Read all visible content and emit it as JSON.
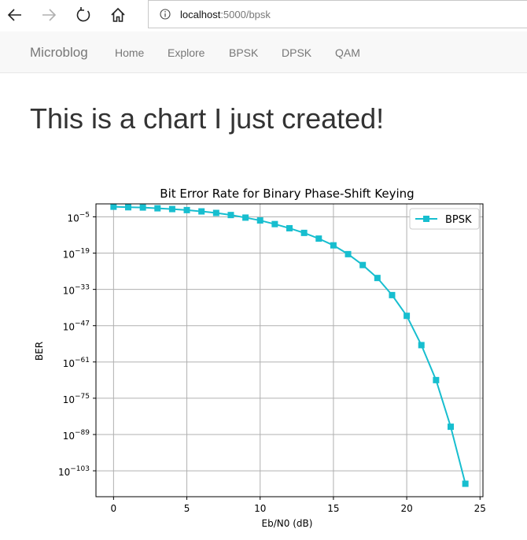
{
  "browser": {
    "url_host": "localhost",
    "url_path": ":5000/bpsk",
    "icons": [
      "back-icon",
      "forward-icon",
      "refresh-icon",
      "home-icon",
      "info-icon"
    ]
  },
  "navbar": {
    "brand": "Microblog",
    "links": [
      "Home",
      "Explore",
      "BPSK",
      "DPSK",
      "QAM"
    ]
  },
  "page": {
    "title": "This is a chart I just created!"
  },
  "colors": {
    "series": "#17becf",
    "grid": "#b0b0b0",
    "navbar_bg": "#f8f8f8"
  },
  "chart_data": {
    "type": "line",
    "title": "Bit Error Rate for Binary Phase-Shift Keying",
    "xlabel": "Eb/N0 (dB)",
    "ylabel": "BER",
    "yscale": "log",
    "grid": true,
    "legend_loc": "upper right",
    "xlim": [
      -1.2,
      25.2
    ],
    "ylim_exponent": [
      -113,
      0
    ],
    "xticks": [
      0,
      5,
      10,
      15,
      20,
      25
    ],
    "xtick_labels": [
      "0",
      "5",
      "10",
      "15",
      "20",
      "25"
    ],
    "yticks_exponent": [
      -5,
      -19,
      -33,
      -47,
      -61,
      -75,
      -89,
      -103
    ],
    "ytick_labels": [
      "10",
      "10",
      "10",
      "10",
      "10",
      "10",
      "10",
      "10"
    ],
    "ytick_label_exponents": [
      "−5",
      "−19",
      "−33",
      "−47",
      "−61",
      "−75",
      "−89",
      "−103"
    ],
    "series": [
      {
        "name": "BPSK",
        "marker": "square",
        "x": [
          0,
          1,
          2,
          3,
          4,
          5,
          6,
          7,
          8,
          9,
          10,
          11,
          12,
          13,
          14,
          15,
          16,
          17,
          18,
          19,
          20,
          21,
          22,
          23,
          24
        ],
        "log10_y": [
          -1.1,
          -1.3,
          -1.4,
          -1.7,
          -2.0,
          -2.4,
          -2.9,
          -3.5,
          -4.3,
          -5.3,
          -6.4,
          -7.8,
          -9.4,
          -11.2,
          -13.4,
          -16.0,
          -19.4,
          -23.6,
          -28.6,
          -35.2,
          -43.2,
          -54.5,
          -68.0,
          -86.0,
          -108.0
        ]
      }
    ]
  }
}
